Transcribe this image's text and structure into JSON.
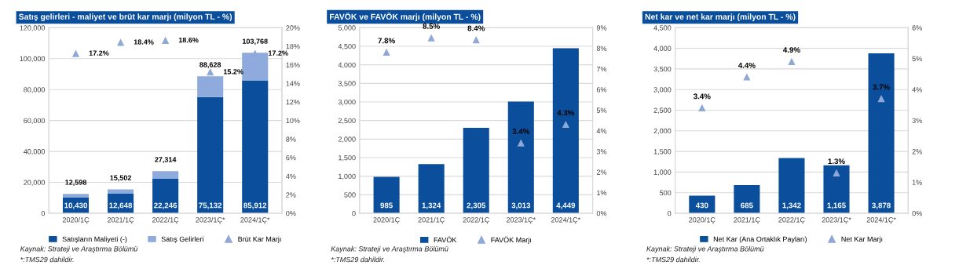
{
  "chart_data": [
    {
      "type": "bar",
      "title": "Satış gelirleri - maliyet ve brüt kar marjı (milyon TL - %)",
      "categories": [
        "2020/1Ç",
        "2021/1Ç",
        "2022/1Ç",
        "2023/1Ç*",
        "2024/1Ç*"
      ],
      "stacked": true,
      "series": [
        {
          "name": "Satışların Maliyeti (-)",
          "color": "#0b4f9c",
          "values": [
            10430,
            12648,
            22246,
            75132,
            85912
          ],
          "value_labels": [
            "10,430",
            "12,648",
            "22,246",
            "75,132",
            "85,912"
          ]
        },
        {
          "name": "Satış Gelirleri",
          "color": "#8faadc",
          "values": [
            2168,
            2854,
            5068,
            13496,
            17856
          ]
        },
        {
          "name": "Brüt Kar Marjı",
          "type": "scatter",
          "axis": "y2",
          "marker": "triangle",
          "color": "#8fa8d8",
          "values": [
            17.2,
            18.4,
            18.6,
            15.2,
            17.2
          ],
          "value_labels": [
            "17.2%",
            "18.4%",
            "18.6%",
            "15.2%",
            "17.2%"
          ]
        }
      ],
      "totals": [
        "12,598",
        "15,502",
        "27,314",
        "88,628",
        "103,768"
      ],
      "ylim": [
        0,
        120000
      ],
      "yticks": [
        0,
        {
          "value": 20000,
          "label": "20,000"
        },
        {
          "value": 40000,
          "label": "40,000"
        },
        {
          "value": 60000,
          "label": "60,000"
        },
        {
          "value": 80000,
          "label": "80,000"
        },
        {
          "value": 100000,
          "label": "100,000"
        },
        {
          "value": 120000,
          "label": "120,000"
        }
      ],
      "y2lim": [
        0,
        20
      ],
      "y2ticks": [
        {
          "value": 0,
          "label": "0%"
        },
        {
          "value": 2,
          "label": "2%"
        },
        {
          "value": 4,
          "label": "4%"
        },
        {
          "value": 6,
          "label": "6%"
        },
        {
          "value": 8,
          "label": "8%"
        },
        {
          "value": 10,
          "label": "10%"
        },
        {
          "value": 12,
          "label": "12%"
        },
        {
          "value": 14,
          "label": "14%"
        },
        {
          "value": 16,
          "label": "16%"
        },
        {
          "value": 18,
          "label": "18%"
        },
        {
          "value": 20,
          "label": "20%"
        }
      ],
      "grid": "y",
      "legend": "bottom",
      "annotations": [
        "Kaynak: Strateji ve Araştırma Bölümü",
        "*:TMS29 dahildir."
      ]
    },
    {
      "type": "bar",
      "title": "FAVÖK ve FAVÖK marjı (milyon TL - %)",
      "categories": [
        "2020/1Ç",
        "2021/1Ç",
        "2022/1Ç",
        "2023/1Ç*",
        "2024/1Ç*"
      ],
      "series": [
        {
          "name": "FAVÖK",
          "color": "#0b4f9c",
          "values": [
            985,
            1324,
            2305,
            3013,
            4449
          ],
          "value_labels": [
            "985",
            "1,324",
            "2,305",
            "3,013",
            "4,449"
          ]
        },
        {
          "name": "FAVÖK Marjı",
          "type": "scatter",
          "axis": "y2",
          "marker": "triangle",
          "color": "#8fa8d8",
          "values": [
            7.8,
            8.5,
            8.4,
            3.4,
            4.3
          ],
          "value_labels": [
            "7.8%",
            "8.5%",
            "8.4%",
            "3.4%",
            "4.3%"
          ]
        }
      ],
      "ylim": [
        0,
        5000
      ],
      "yticks": [
        0,
        500,
        {
          "value": 1000,
          "label": "1,000"
        },
        {
          "value": 1500,
          "label": "1,500"
        },
        {
          "value": 2000,
          "label": "2,000"
        },
        {
          "value": 2500,
          "label": "2,500"
        },
        {
          "value": 3000,
          "label": "3,000"
        },
        {
          "value": 3500,
          "label": "3,500"
        },
        {
          "value": 4000,
          "label": "4,000"
        },
        {
          "value": 4500,
          "label": "4,500"
        },
        {
          "value": 5000,
          "label": "5,000"
        }
      ],
      "y2lim": [
        0,
        9
      ],
      "y2ticks": [
        {
          "value": 0,
          "label": "0%"
        },
        {
          "value": 1,
          "label": "1%"
        },
        {
          "value": 2,
          "label": "2%"
        },
        {
          "value": 3,
          "label": "3%"
        },
        {
          "value": 4,
          "label": "4%"
        },
        {
          "value": 5,
          "label": "5%"
        },
        {
          "value": 6,
          "label": "6%"
        },
        {
          "value": 7,
          "label": "7%"
        },
        {
          "value": 8,
          "label": "8%"
        },
        {
          "value": 9,
          "label": "9%"
        }
      ],
      "grid": "y",
      "legend": "bottom",
      "annotations": [
        "Kaynak: Strateji ve Araştırma Bölümü",
        "*:TMS29 dahildir."
      ]
    },
    {
      "type": "bar",
      "title": "Net kar ve net kar marjı (milyon TL - %)",
      "categories": [
        "2020/1Ç",
        "2021/1Ç",
        "2022/1Ç",
        "2023/1Ç*",
        "2024/1Ç*"
      ],
      "series": [
        {
          "name": "Net Kar (Ana Ortaklık Payları)",
          "color": "#0b4f9c",
          "values": [
            430,
            685,
            1342,
            1165,
            3878
          ],
          "value_labels": [
            "430",
            "685",
            "1,342",
            "1,165",
            "3,878"
          ]
        },
        {
          "name": "Net Kar Marjı",
          "type": "scatter",
          "axis": "y2",
          "marker": "triangle",
          "color": "#8fa8d8",
          "values": [
            3.4,
            4.4,
            4.9,
            1.3,
            3.7
          ],
          "value_labels": [
            "3.4%",
            "4.4%",
            "4.9%",
            "1.3%",
            "3.7%"
          ]
        }
      ],
      "ylim": [
        0,
        4500
      ],
      "yticks": [
        0,
        500,
        {
          "value": 1000,
          "label": "1,000"
        },
        {
          "value": 1500,
          "label": "1,500"
        },
        {
          "value": 2000,
          "label": "2,000"
        },
        {
          "value": 2500,
          "label": "2,500"
        },
        {
          "value": 3000,
          "label": "3,000"
        },
        {
          "value": 3500,
          "label": "3,500"
        },
        {
          "value": 4000,
          "label": "4,000"
        },
        {
          "value": 4500,
          "label": "4,500"
        }
      ],
      "y2lim": [
        0,
        6
      ],
      "y2ticks": [
        {
          "value": 0,
          "label": "0%"
        },
        {
          "value": 1,
          "label": "1%"
        },
        {
          "value": 2,
          "label": "2%"
        },
        {
          "value": 3,
          "label": "3%"
        },
        {
          "value": 4,
          "label": "4%"
        },
        {
          "value": 5,
          "label": "5%"
        },
        {
          "value": 6,
          "label": "6%"
        }
      ],
      "grid": "y",
      "legend": "bottom",
      "annotations": [
        "Kaynak: Strateji ve Araştırma Bölümü",
        "*:TMS29 dahildir."
      ]
    }
  ]
}
